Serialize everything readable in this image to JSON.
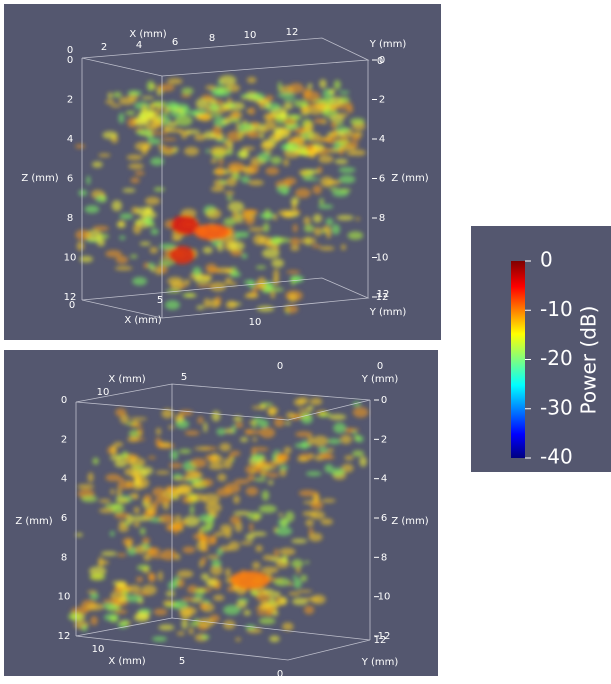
{
  "panels": [
    {
      "x_label": "X (mm)",
      "y_label": "Y (mm)",
      "z_label": "Z (mm)",
      "z_ticks": [
        0,
        2,
        4,
        6,
        8,
        10,
        12
      ],
      "x_ticks_top": [
        0,
        2,
        4,
        6,
        8,
        10,
        12
      ],
      "x_ticks_bottom": [
        0,
        5,
        10
      ],
      "y_tick_top": 0,
      "y_tick_bottom": 12
    },
    {
      "x_label": "X (mm)",
      "y_label": "Y (mm)",
      "z_label": "Z (mm)",
      "z_ticks": [
        0,
        2,
        4,
        6,
        8,
        10,
        12
      ],
      "x_ticks_top": [
        10,
        5,
        0
      ],
      "x_ticks_bottom": [
        10,
        5,
        0
      ],
      "y_tick_top": 0,
      "y_tick_bottom": 12
    }
  ],
  "colorbar": {
    "label": "Power (dB)",
    "range": [
      -40,
      0
    ],
    "ticks": [
      0,
      -10,
      -20,
      -30,
      -40
    ]
  }
}
